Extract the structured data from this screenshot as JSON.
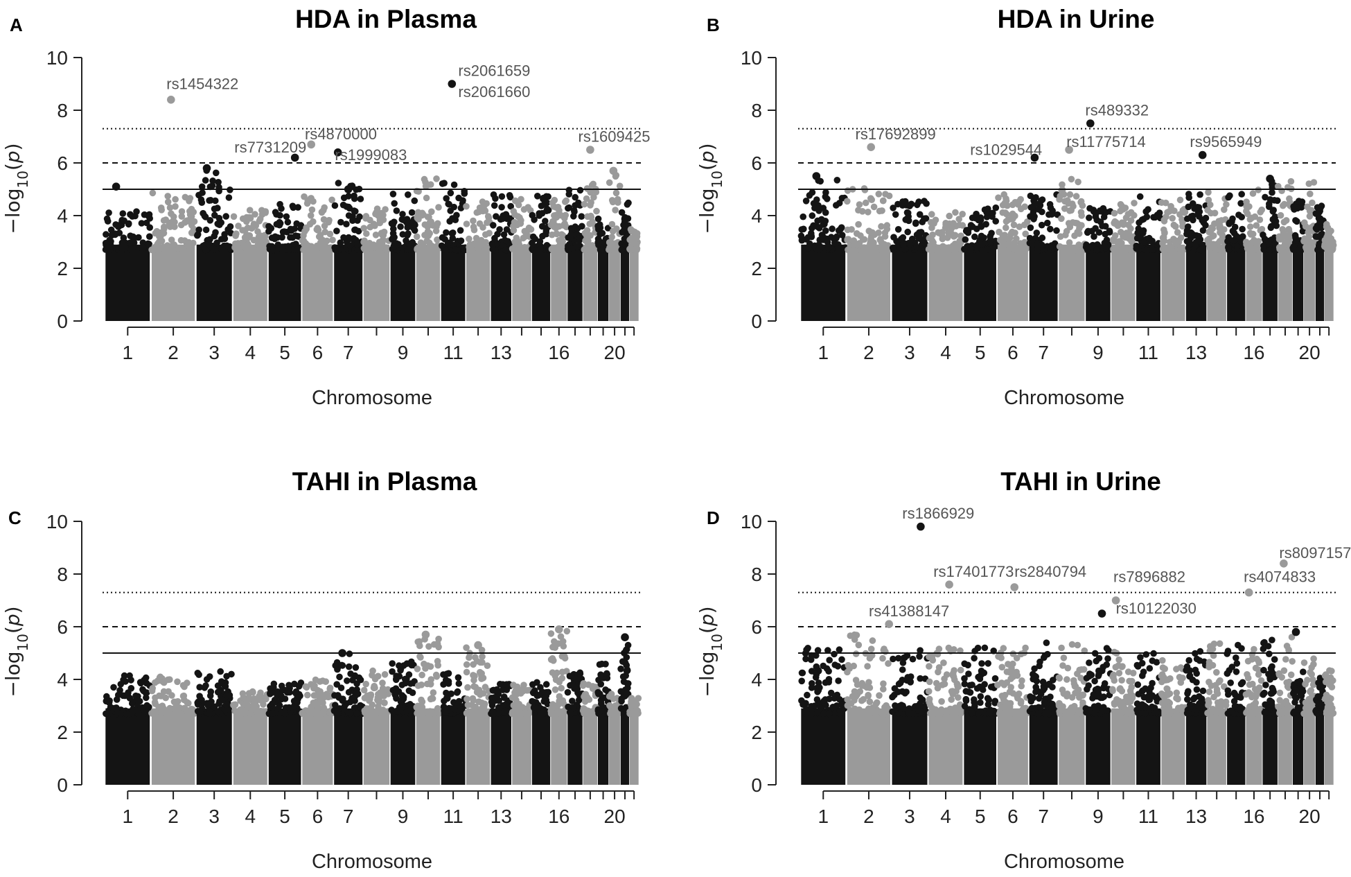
{
  "colors": {
    "odd": "#141414",
    "even": "#9a9a9a"
  },
  "chromosome_order": [
    "1",
    "2",
    "3",
    "4",
    "5",
    "6",
    "7",
    "8",
    "9",
    "10",
    "11",
    "12",
    "13",
    "14",
    "15",
    "16",
    "17",
    "18",
    "19",
    "20",
    "21",
    "22"
  ],
  "chromosome_weights": [
    248,
    242,
    198,
    190,
    181,
    171,
    159,
    145,
    138,
    134,
    135,
    133,
    114,
    107,
    102,
    90,
    83,
    80,
    59,
    64,
    47,
    51
  ],
  "chart_data": [
    {
      "panel": "A",
      "type": "scatter",
      "title": "HDA in Plasma",
      "xlabel": "Chromosome",
      "ylabel": "-log10(p)",
      "ylim": [
        0,
        10
      ],
      "yticks": [
        0,
        2,
        4,
        6,
        8,
        10
      ],
      "xticks": [
        "1",
        "2",
        "3",
        "4",
        "5",
        "6",
        "7",
        "9",
        "11",
        "13",
        "16",
        "20"
      ],
      "thresholds": [
        {
          "value": 7.3,
          "style": "dotted"
        },
        {
          "value": 6,
          "style": "dashed"
        },
        {
          "value": 5,
          "style": "solid"
        }
      ],
      "background_top": [
        4.2,
        4.9,
        5.8,
        4.4,
        4.5,
        4.9,
        5.4,
        4.3,
        4.9,
        5.4,
        5.3,
        4.6,
        4.8,
        4.7,
        4.8,
        4.7,
        5.1,
        5.3,
        4.0,
        5.7,
        4.5,
        3.6
      ],
      "points": [
        {
          "chr": "1",
          "pos": 0.25,
          "y": 5.1
        },
        {
          "chr": "2",
          "pos": 0.45,
          "y": 8.4
        },
        {
          "chr": "3",
          "pos": 0.3,
          "y": 5.8
        },
        {
          "chr": "5",
          "pos": 0.8,
          "y": 6.2
        },
        {
          "chr": "6",
          "pos": 0.3,
          "y": 6.7
        },
        {
          "chr": "7",
          "pos": 0.15,
          "y": 6.4
        },
        {
          "chr": "7",
          "pos": 0.5,
          "y": 5.0
        },
        {
          "chr": "11",
          "pos": 0.45,
          "y": 9.0
        },
        {
          "chr": "18",
          "pos": 0.5,
          "y": 6.5
        },
        {
          "chr": "20",
          "pos": 0.4,
          "y": 5.7
        }
      ],
      "annotations": [
        {
          "text": "rs1454322",
          "chr": "2",
          "pos": 0.35,
          "y": 8.8
        },
        {
          "text": "rs7731209",
          "chr": "4",
          "pos": 0.05,
          "y": 6.4
        },
        {
          "text": "rs4870000",
          "chr": "6",
          "pos": 0.1,
          "y": 6.9
        },
        {
          "text": "rs1999083",
          "chr": "7",
          "pos": 0.05,
          "y": 6.1
        },
        {
          "text": "rs2061659",
          "chr": "11",
          "pos": 0.7,
          "y": 9.3
        },
        {
          "text": "rs2061660",
          "chr": "11",
          "pos": 0.7,
          "y": 8.5
        },
        {
          "text": "rs1609425",
          "chr": "17",
          "pos": 0.7,
          "y": 6.8
        }
      ]
    },
    {
      "panel": "B",
      "type": "scatter",
      "title": "HDA in Urine",
      "xlabel": "Chromosome",
      "ylabel": "-log10(p)",
      "ylim": [
        0,
        10
      ],
      "yticks": [
        0,
        2,
        4,
        6,
        8,
        10
      ],
      "xticks": [
        "1",
        "2",
        "3",
        "4",
        "5",
        "6",
        "7",
        "9",
        "11",
        "13",
        "16",
        "20"
      ],
      "thresholds": [
        {
          "value": 7.3,
          "style": "dotted"
        },
        {
          "value": 6,
          "style": "dashed"
        },
        {
          "value": 5,
          "style": "solid"
        }
      ],
      "background_top": [
        5.4,
        5.1,
        4.6,
        4.2,
        4.4,
        5.0,
        5.0,
        5.6,
        4.3,
        4.5,
        4.8,
        4.6,
        4.9,
        5.1,
        4.9,
        5.1,
        5.3,
        5.4,
        4.6,
        5.3,
        4.4,
        3.7
      ],
      "points": [
        {
          "chr": "1",
          "pos": 0.35,
          "y": 5.5
        },
        {
          "chr": "2",
          "pos": 0.55,
          "y": 6.6
        },
        {
          "chr": "7",
          "pos": 0.2,
          "y": 6.2
        },
        {
          "chr": "8",
          "pos": 0.4,
          "y": 6.5
        },
        {
          "chr": "9",
          "pos": 0.2,
          "y": 7.5
        },
        {
          "chr": "13",
          "pos": 0.8,
          "y": 6.3
        },
        {
          "chr": "17",
          "pos": 0.5,
          "y": 5.4
        }
      ],
      "annotations": [
        {
          "text": "rs17692899",
          "chr": "2",
          "pos": 0.2,
          "y": 6.9
        },
        {
          "text": "rs1029544",
          "chr": "5",
          "pos": 0.2,
          "y": 6.3
        },
        {
          "text": "rs11775714",
          "chr": "8",
          "pos": 0.3,
          "y": 6.6
        },
        {
          "text": "rs489332",
          "chr": "9",
          "pos": 0.0,
          "y": 7.8
        },
        {
          "text": "rs9565949",
          "chr": "13",
          "pos": 0.2,
          "y": 6.6
        }
      ]
    },
    {
      "panel": "C",
      "type": "scatter",
      "title": "TAHI in Plasma",
      "xlabel": "Chromosome",
      "ylabel": "-log10(p)",
      "ylim": [
        0,
        10
      ],
      "yticks": [
        0,
        2,
        4,
        6,
        8,
        10
      ],
      "xticks": [
        "1",
        "2",
        "3",
        "4",
        "5",
        "6",
        "7",
        "9",
        "11",
        "13",
        "16",
        "20"
      ],
      "thresholds": [
        {
          "value": 7.3,
          "style": "dotted"
        },
        {
          "value": 6,
          "style": "dashed"
        },
        {
          "value": 5,
          "style": "solid"
        }
      ],
      "background_top": [
        4.2,
        4.1,
        4.3,
        3.6,
        3.9,
        4.0,
        5.0,
        4.4,
        4.8,
        5.7,
        4.4,
        5.3,
        4.0,
        3.8,
        3.9,
        5.9,
        4.3,
        4.0,
        4.8,
        3.5,
        5.6,
        3.3
      ],
      "points": [
        {
          "chr": "7",
          "pos": 0.3,
          "y": 5.0
        },
        {
          "chr": "10",
          "pos": 0.4,
          "y": 5.7
        },
        {
          "chr": "12",
          "pos": 0.5,
          "y": 5.3
        },
        {
          "chr": "16",
          "pos": 0.5,
          "y": 5.9
        },
        {
          "chr": "21",
          "pos": 0.5,
          "y": 5.6
        }
      ],
      "annotations": []
    },
    {
      "panel": "D",
      "type": "scatter",
      "title": "TAHI in Urine",
      "xlabel": "Chromosome",
      "ylabel": "-log10(p)",
      "ylim": [
        0,
        10
      ],
      "yticks": [
        0,
        2,
        4,
        6,
        8,
        10
      ],
      "xticks": [
        "1",
        "2",
        "3",
        "4",
        "5",
        "6",
        "7",
        "9",
        "11",
        "13",
        "16",
        "20"
      ],
      "thresholds": [
        {
          "value": 7.3,
          "style": "dotted"
        },
        {
          "value": 6,
          "style": "dashed"
        },
        {
          "value": 5,
          "style": "solid"
        }
      ],
      "background_top": [
        5.2,
        5.7,
        5.1,
        5.2,
        5.3,
        5.3,
        5.4,
        5.6,
        5.2,
        5.3,
        5.0,
        4.8,
        5.1,
        5.4,
        5.4,
        5.2,
        5.6,
        5.7,
        4.5,
        4.8,
        4.4,
        4.4
      ],
      "points": [
        {
          "chr": "2",
          "pos": 0.95,
          "y": 6.1
        },
        {
          "chr": "3",
          "pos": 0.8,
          "y": 9.8
        },
        {
          "chr": "4",
          "pos": 0.6,
          "y": 7.6
        },
        {
          "chr": "6",
          "pos": 0.55,
          "y": 7.5
        },
        {
          "chr": "9",
          "pos": 0.65,
          "y": 6.5
        },
        {
          "chr": "10",
          "pos": 0.2,
          "y": 7.0
        },
        {
          "chr": "16",
          "pos": 0.2,
          "y": 7.3
        },
        {
          "chr": "18",
          "pos": 0.4,
          "y": 8.4
        },
        {
          "chr": "19",
          "pos": 0.3,
          "y": 5.8
        }
      ],
      "annotations": [
        {
          "text": "rs1866929",
          "chr": "3",
          "pos": 0.3,
          "y": 10.1
        },
        {
          "text": "rs41388147",
          "chr": "2",
          "pos": 0.5,
          "y": 6.4
        },
        {
          "text": "rs17401773",
          "chr": "4",
          "pos": 0.15,
          "y": 7.9
        },
        {
          "text": "rs2840794",
          "chr": "6",
          "pos": 0.55,
          "y": 7.9
        },
        {
          "text": "rs7896882",
          "chr": "10",
          "pos": 0.1,
          "y": 7.7
        },
        {
          "text": "rs10122030",
          "chr": "10",
          "pos": 0.2,
          "y": 6.5
        },
        {
          "text": "rs4074833",
          "chr": "15",
          "pos": 0.9,
          "y": 7.7
        },
        {
          "text": "rs8097157",
          "chr": "18",
          "pos": 0.1,
          "y": 8.6
        }
      ]
    }
  ]
}
